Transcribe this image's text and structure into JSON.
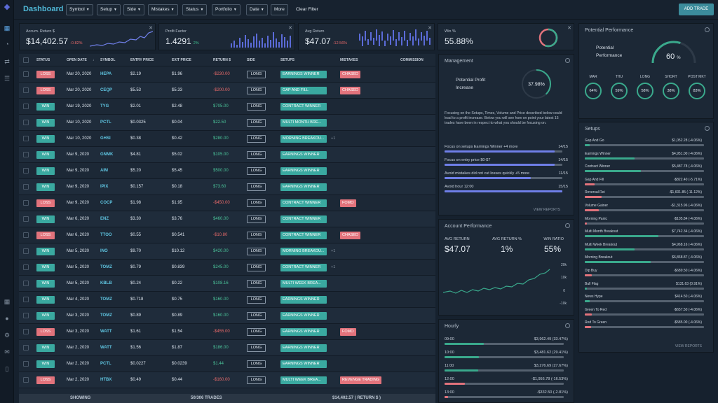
{
  "header": {
    "title": "Dashboard",
    "add_trade": "ADD TRADE",
    "clear_filter": "Clear Filter",
    "filters": [
      "Symbol",
      "Setup",
      "Side",
      "Mistakes",
      "Status",
      "Portfolio",
      "Date",
      "More"
    ]
  },
  "kpis": [
    {
      "label": "Accum. Return $",
      "value": "$14,402.57",
      "change": "-0.82%"
    },
    {
      "label": "Profit Factor",
      "value": "1.4291",
      "change": "2%"
    },
    {
      "label": "Avg Return",
      "value": "$47.07",
      "change": "-12.56%"
    },
    {
      "label": "Win %",
      "value": "55.88%"
    }
  ],
  "table": {
    "headers": [
      "STATUS",
      "OPEN DATE",
      "SYMBOL",
      "ENTRY PRICE",
      "EXIT PRICE",
      "RETURN $",
      "SIDE",
      "SETUPS",
      "MISTAKES",
      "COMMISSION"
    ],
    "rows": [
      {
        "status": "LOSS",
        "date": "Mar 20, 2020",
        "symbol": "HEPA",
        "entry": "$2.19",
        "exit": "$1.96",
        "ret": "-$230.00",
        "side": "LONG",
        "setup": "EARNINGS WINNER",
        "mistake": "CHASED"
      },
      {
        "status": "LOSS",
        "date": "Mar 20, 2020",
        "symbol": "CEQP",
        "entry": "$5.53",
        "exit": "$5.33",
        "ret": "-$200.00",
        "side": "LONG",
        "setup": "GAP AND FILL",
        "mistake": "CHASED"
      },
      {
        "status": "WIN",
        "date": "Mar 19, 2020",
        "symbol": "TYG",
        "entry": "$2.01",
        "exit": "$2.48",
        "ret": "$705.00",
        "side": "LONG",
        "setup": "CONTRACT WINNER"
      },
      {
        "status": "WIN",
        "date": "Mar 10, 2020",
        "symbol": "PCTL",
        "entry": "$0.0325",
        "exit": "$0.04",
        "ret": "$22.50",
        "side": "LONG",
        "setup": "MULTI MONTH BRE..."
      },
      {
        "status": "WIN",
        "date": "Mar 10, 2020",
        "symbol": "GHSI",
        "entry": "$0.38",
        "exit": "$0.42",
        "ret": "$280.00",
        "side": "LONG",
        "setup": "MORNING BREAKOU...",
        "plus": "+1"
      },
      {
        "status": "WIN",
        "date": "Mar 9, 2020",
        "symbol": "GNMK",
        "entry": "$4.81",
        "exit": "$5.02",
        "ret": "$105.00",
        "side": "LONG",
        "setup": "EARNINGS WINNER"
      },
      {
        "status": "WIN",
        "date": "Mar 9, 2020",
        "symbol": "AIM",
        "entry": "$5.20",
        "exit": "$5.45",
        "ret": "$500.00",
        "side": "LONG",
        "setup": "EARNINGS WINNER"
      },
      {
        "status": "WIN",
        "date": "Mar 9, 2020",
        "symbol": "IPIX",
        "entry": "$0.157",
        "exit": "$0.18",
        "ret": "$73.60",
        "side": "LONG",
        "setup": "EARNINGS WINNER"
      },
      {
        "status": "LOSS",
        "date": "Mar 9, 2020",
        "symbol": "COCP",
        "entry": "$1.98",
        "exit": "$1.95",
        "ret": "-$450.00",
        "side": "LONG",
        "setup": "CONTRACT WINNER",
        "mistake": "FOMO"
      },
      {
        "status": "WIN",
        "date": "Mar 6, 2020",
        "symbol": "ENZ",
        "entry": "$3.30",
        "exit": "$3.76",
        "ret": "$460.00",
        "side": "LONG",
        "setup": "CONTRACT WINNER"
      },
      {
        "status": "LOSS",
        "date": "Mar 6, 2020",
        "symbol": "TTOO",
        "entry": "$0.55",
        "exit": "$0.541",
        "ret": "-$10.80",
        "side": "LONG",
        "setup": "CONTRACT WINNER",
        "mistake": "CHASED"
      },
      {
        "status": "WIN",
        "date": "Mar 5, 2020",
        "symbol": "INO",
        "entry": "$9.70",
        "exit": "$10.12",
        "ret": "$420.00",
        "side": "LONG",
        "setup": "MORNING BREAKOU...",
        "plus": "+1"
      },
      {
        "status": "WIN",
        "date": "Mar 5, 2020",
        "symbol": "TOMZ",
        "entry": "$0.79",
        "exit": "$0.839",
        "ret": "$245.00",
        "side": "LONG",
        "setup": "CONTRACT WINNER",
        "plus": "+1"
      },
      {
        "status": "WIN",
        "date": "Mar 5, 2020",
        "symbol": "KBLB",
        "entry": "$0.24",
        "exit": "$0.22",
        "ret": "$108.16",
        "side": "LONG",
        "setup": "MULTI WEEK BREA..."
      },
      {
        "status": "WIN",
        "date": "Mar 4, 2020",
        "symbol": "TOMZ",
        "entry": "$0.718",
        "exit": "$0.75",
        "ret": "$160.00",
        "side": "LONG",
        "setup": "EARNINGS WINNER"
      },
      {
        "status": "WIN",
        "date": "Mar 3, 2020",
        "symbol": "TOMZ",
        "entry": "$0.89",
        "exit": "$0.89",
        "ret": "$160.00",
        "side": "LONG",
        "setup": "EARNINGS WINNER"
      },
      {
        "status": "LOSS",
        "date": "Mar 3, 2020",
        "symbol": "WATT",
        "entry": "$1.61",
        "exit": "$1.54",
        "ret": "-$455.00",
        "side": "LONG",
        "setup": "EARNINGS WINNER",
        "mistake": "FOMO"
      },
      {
        "status": "WIN",
        "date": "Mar 2, 2020",
        "symbol": "WATT",
        "entry": "$1.56",
        "exit": "$1.87",
        "ret": "$186.00",
        "side": "LONG",
        "setup": "EARNINGS WINNER"
      },
      {
        "status": "WIN",
        "date": "Mar 2, 2020",
        "symbol": "PCTL",
        "entry": "$0.0227",
        "exit": "$0.0239",
        "ret": "$1.44",
        "side": "LONG",
        "setup": "EARNINGS WINNER"
      },
      {
        "status": "LOSS",
        "date": "Mar 2, 2020",
        "symbol": "HTBX",
        "entry": "$0.49",
        "exit": "$0.44",
        "ret": "-$160.00",
        "side": "LONG",
        "setup": "MULTI WEEK BREA...",
        "mistake": "REVENGE TRADING"
      }
    ],
    "footer": {
      "showing": "SHOWING",
      "count": "50/306 TRADES",
      "total": "$14,402.57 ( RETURN $ )"
    }
  },
  "management": {
    "title": "Management",
    "pp_label_1": "Potential Profit",
    "pp_label_2": "Increase",
    "pp_value": "37.98%",
    "pp_fraction": 0.3798,
    "desc": "Focusing on the Setups, Times, Volume and Price described below could lead to a profit increase. Below you will see how on point your latest 15 trades have been in respect to what you should be focusing on.",
    "items": [
      {
        "label": "Focus on setups Earnings Winner +4 more",
        "count": "14/15",
        "fraction": 0.933
      },
      {
        "label": "Focus on entry price $0-$7",
        "count": "14/15",
        "fraction": 0.933
      },
      {
        "label": "Avoid mistakes did not cut losses quickly +5 more",
        "count": "11/15",
        "fraction": 0.733
      },
      {
        "label": "Avoid hour 12:00",
        "count": "15/15",
        "fraction": 1.0
      }
    ],
    "view": "VIEW REPORTS"
  },
  "account": {
    "title": "Account Performance",
    "labels": [
      "AVG RETURN",
      "AVG RETURN %",
      "WIN RATIO"
    ],
    "values": [
      "$47.07",
      "1%",
      "55%"
    ],
    "yticks": [
      "20k",
      "10k",
      "0",
      "-10k"
    ]
  },
  "hourly": {
    "title": "Hourly",
    "items": [
      {
        "hour": "09:00",
        "value": "$3,962.49 (33.47%)",
        "fraction": 0.33,
        "color": "#3aa98c"
      },
      {
        "hour": "10:00",
        "value": "$3,481.62 (29.41%)",
        "fraction": 0.29,
        "color": "#3aa98c"
      },
      {
        "hour": "11:00",
        "value": "$3,276.69 (27.67%)",
        "fraction": 0.28,
        "color": "#3aa98c"
      },
      {
        "hour": "12:00",
        "value": "-$1,956.78 (-16.53%)",
        "fraction": 0.17,
        "color": "#e2737c"
      },
      {
        "hour": "13:00",
        "value": "-$332.50 (-2.81%)",
        "fraction": 0.03,
        "color": "#e2737c"
      }
    ]
  },
  "potential": {
    "title": "Potential Performance",
    "label_1": "Potential",
    "label_2": "Performance",
    "value": "60",
    "unit": "%",
    "fraction": 0.6,
    "rings": [
      {
        "label": "MAR",
        "value": "64%"
      },
      {
        "label": "THU",
        "value": "59%"
      },
      {
        "label": "LONG",
        "value": "58%"
      },
      {
        "label": "SHORT",
        "value": "38%"
      },
      {
        "label": "POST MKT",
        "value": "83%"
      }
    ]
  },
  "setups": {
    "title": "Setups",
    "view": "VIEW REPORTS",
    "items": [
      {
        "name": "Gap And Go",
        "value": "$1,052.28 (-4.06%)",
        "fraction": 0.04,
        "color": "#3aa98c"
      },
      {
        "name": "Earnings Winner",
        "value": "$4,951.00 (-4.06%)",
        "fraction": 0.42,
        "color": "#3aa98c"
      },
      {
        "name": "Contract Winner",
        "value": "$5,487.78 (-4.06%)",
        "fraction": 0.47,
        "color": "#3aa98c"
      },
      {
        "name": "Gap And Fill",
        "value": "-$822.40 (-5.71%)",
        "fraction": 0.08,
        "color": "#e2737c"
      },
      {
        "name": "Reversal Rei",
        "value": "-$1,601.85 (-11.12%)",
        "fraction": 0.14,
        "color": "#e2737c"
      },
      {
        "name": "Volume Gainer",
        "value": "-$1,315.96 (-4.06%)",
        "fraction": 0.12,
        "color": "#e2737c"
      },
      {
        "name": "Morning Panic",
        "value": "-$105.84 (-4.06%)",
        "fraction": 0.02,
        "color": "#e2737c"
      },
      {
        "name": "Multi Month Breakout",
        "value": "$7,742.34 (-4.06%)",
        "fraction": 0.62,
        "color": "#3aa98c"
      },
      {
        "name": "Multi Week Breakout",
        "value": "$4,968.16 (-4.06%)",
        "fraction": 0.42,
        "color": "#3aa98c"
      },
      {
        "name": "Morning Breakout",
        "value": "$6,868.87 (-4.06%)",
        "fraction": 0.55,
        "color": "#3aa98c"
      },
      {
        "name": "Dip Buy",
        "value": "-$689.50 (-4.06%)",
        "fraction": 0.06,
        "color": "#e2737c"
      },
      {
        "name": "Bull Flag",
        "value": "$131.63 (0.91%)",
        "fraction": 0.02,
        "color": "#3aa98c"
      },
      {
        "name": "News Hype",
        "value": "$414.50 (-4.06%)",
        "fraction": 0.04,
        "color": "#3aa98c"
      },
      {
        "name": "Green To Red",
        "value": "-$657.50 (-4.06%)",
        "fraction": 0.06,
        "color": "#e2737c"
      },
      {
        "name": "Red To Green",
        "value": "-$585.00 (-4.06%)",
        "fraction": 0.05,
        "color": "#e2737c"
      }
    ]
  }
}
